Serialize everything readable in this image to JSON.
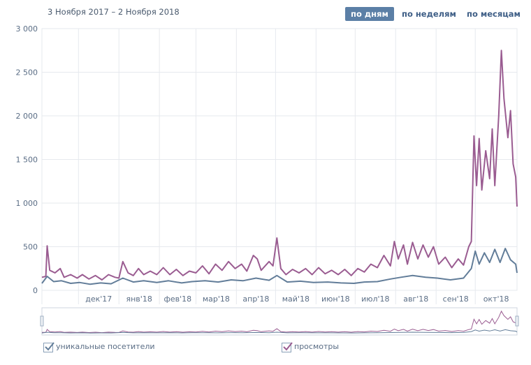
{
  "header": {
    "date_range": "3 Ноября 2017 – 2 Ноября 2018",
    "periods": [
      {
        "label": "по дням",
        "active": true
      },
      {
        "label": "по неделям",
        "active": false
      },
      {
        "label": "по месяцам",
        "active": false
      }
    ]
  },
  "legend": {
    "visitors_label": "уникальные посетители",
    "views_label": "просмотры"
  },
  "colors": {
    "visitors": "#627d99",
    "views": "#9a5c91",
    "grid": "#e6e9ee",
    "axis_text": "#5a6d85"
  },
  "chart_data": {
    "type": "line",
    "x_range": [
      "2017-11-03",
      "2018-11-02"
    ],
    "ylim": [
      0,
      3000
    ],
    "y_ticks": [
      "0",
      "500",
      "1 000",
      "1 500",
      "2 000",
      "2 500",
      "3 000"
    ],
    "x_tick_labels": [
      "дек'17",
      "янв'18",
      "фев'18",
      "мар'18",
      "апр'18",
      "май'18",
      "июн'18",
      "июл'18",
      "авг'18",
      "сен'18",
      "окт'18"
    ],
    "grid": true,
    "series": [
      {
        "name": "просмотры",
        "points": [
          [
            "2017-11-03",
            150
          ],
          [
            "2017-11-06",
            160
          ],
          [
            "2017-11-07",
            510
          ],
          [
            "2017-11-09",
            230
          ],
          [
            "2017-11-13",
            200
          ],
          [
            "2017-11-17",
            250
          ],
          [
            "2017-11-20",
            150
          ],
          [
            "2017-11-25",
            180
          ],
          [
            "2017-11-30",
            140
          ],
          [
            "2017-12-04",
            180
          ],
          [
            "2017-12-09",
            130
          ],
          [
            "2017-12-14",
            170
          ],
          [
            "2017-12-19",
            120
          ],
          [
            "2017-12-24",
            180
          ],
          [
            "2017-12-29",
            150
          ],
          [
            "2018-01-01",
            140
          ],
          [
            "2018-01-04",
            330
          ],
          [
            "2018-01-08",
            200
          ],
          [
            "2018-01-12",
            170
          ],
          [
            "2018-01-16",
            250
          ],
          [
            "2018-01-20",
            180
          ],
          [
            "2018-01-25",
            220
          ],
          [
            "2018-01-30",
            180
          ],
          [
            "2018-02-04",
            260
          ],
          [
            "2018-02-09",
            180
          ],
          [
            "2018-02-14",
            240
          ],
          [
            "2018-02-19",
            170
          ],
          [
            "2018-02-24",
            220
          ],
          [
            "2018-03-01",
            200
          ],
          [
            "2018-03-06",
            280
          ],
          [
            "2018-03-11",
            190
          ],
          [
            "2018-03-16",
            300
          ],
          [
            "2018-03-21",
            230
          ],
          [
            "2018-03-26",
            330
          ],
          [
            "2018-03-31",
            250
          ],
          [
            "2018-04-05",
            300
          ],
          [
            "2018-04-09",
            220
          ],
          [
            "2018-04-14",
            400
          ],
          [
            "2018-04-17",
            360
          ],
          [
            "2018-04-20",
            230
          ],
          [
            "2018-04-26",
            330
          ],
          [
            "2018-04-29",
            280
          ],
          [
            "2018-05-02",
            600
          ],
          [
            "2018-05-05",
            250
          ],
          [
            "2018-05-09",
            180
          ],
          [
            "2018-05-14",
            240
          ],
          [
            "2018-05-19",
            200
          ],
          [
            "2018-05-24",
            250
          ],
          [
            "2018-05-29",
            180
          ],
          [
            "2018-06-03",
            260
          ],
          [
            "2018-06-08",
            190
          ],
          [
            "2018-06-13",
            230
          ],
          [
            "2018-06-18",
            180
          ],
          [
            "2018-06-23",
            240
          ],
          [
            "2018-06-28",
            170
          ],
          [
            "2018-07-03",
            250
          ],
          [
            "2018-07-08",
            210
          ],
          [
            "2018-07-13",
            300
          ],
          [
            "2018-07-18",
            260
          ],
          [
            "2018-07-23",
            400
          ],
          [
            "2018-07-28",
            280
          ],
          [
            "2018-07-31",
            560
          ],
          [
            "2018-08-03",
            360
          ],
          [
            "2018-08-07",
            520
          ],
          [
            "2018-08-10",
            300
          ],
          [
            "2018-08-14",
            550
          ],
          [
            "2018-08-18",
            360
          ],
          [
            "2018-08-22",
            520
          ],
          [
            "2018-08-26",
            380
          ],
          [
            "2018-08-30",
            500
          ],
          [
            "2018-09-03",
            300
          ],
          [
            "2018-09-08",
            380
          ],
          [
            "2018-09-13",
            260
          ],
          [
            "2018-09-18",
            360
          ],
          [
            "2018-09-22",
            290
          ],
          [
            "2018-09-26",
            500
          ],
          [
            "2018-09-28",
            560
          ],
          [
            "2018-09-30",
            1770
          ],
          [
            "2018-10-02",
            1200
          ],
          [
            "2018-10-04",
            1740
          ],
          [
            "2018-10-06",
            1150
          ],
          [
            "2018-10-09",
            1600
          ],
          [
            "2018-10-12",
            1280
          ],
          [
            "2018-10-14",
            1850
          ],
          [
            "2018-10-16",
            1200
          ],
          [
            "2018-10-19",
            2000
          ],
          [
            "2018-10-21",
            2750
          ],
          [
            "2018-10-23",
            2200
          ],
          [
            "2018-10-26",
            1750
          ],
          [
            "2018-10-28",
            2060
          ],
          [
            "2018-10-30",
            1450
          ],
          [
            "2018-11-01",
            1300
          ],
          [
            "2018-11-02",
            960
          ]
        ]
      },
      {
        "name": "уникальные посетители",
        "points": [
          [
            "2017-11-03",
            80
          ],
          [
            "2017-11-07",
            160
          ],
          [
            "2017-11-12",
            100
          ],
          [
            "2017-11-18",
            110
          ],
          [
            "2017-11-25",
            80
          ],
          [
            "2017-12-02",
            90
          ],
          [
            "2017-12-10",
            70
          ],
          [
            "2017-12-18",
            85
          ],
          [
            "2017-12-26",
            75
          ],
          [
            "2018-01-04",
            140
          ],
          [
            "2018-01-12",
            95
          ],
          [
            "2018-01-20",
            110
          ],
          [
            "2018-01-30",
            90
          ],
          [
            "2018-02-08",
            110
          ],
          [
            "2018-02-18",
            85
          ],
          [
            "2018-02-26",
            100
          ],
          [
            "2018-03-08",
            110
          ],
          [
            "2018-03-18",
            95
          ],
          [
            "2018-03-28",
            120
          ],
          [
            "2018-04-06",
            110
          ],
          [
            "2018-04-16",
            140
          ],
          [
            "2018-04-26",
            115
          ],
          [
            "2018-05-02",
            170
          ],
          [
            "2018-05-10",
            95
          ],
          [
            "2018-05-20",
            105
          ],
          [
            "2018-05-30",
            90
          ],
          [
            "2018-06-10",
            95
          ],
          [
            "2018-06-20",
            85
          ],
          [
            "2018-06-30",
            80
          ],
          [
            "2018-07-08",
            95
          ],
          [
            "2018-07-18",
            100
          ],
          [
            "2018-07-28",
            130
          ],
          [
            "2018-08-05",
            150
          ],
          [
            "2018-08-14",
            170
          ],
          [
            "2018-08-24",
            150
          ],
          [
            "2018-09-02",
            140
          ],
          [
            "2018-09-12",
            120
          ],
          [
            "2018-09-22",
            140
          ],
          [
            "2018-09-28",
            250
          ],
          [
            "2018-10-01",
            450
          ],
          [
            "2018-10-04",
            300
          ],
          [
            "2018-10-08",
            430
          ],
          [
            "2018-10-12",
            320
          ],
          [
            "2018-10-16",
            470
          ],
          [
            "2018-10-20",
            320
          ],
          [
            "2018-10-24",
            480
          ],
          [
            "2018-10-28",
            350
          ],
          [
            "2018-11-01",
            300
          ],
          [
            "2018-11-02",
            200
          ]
        ]
      }
    ]
  }
}
